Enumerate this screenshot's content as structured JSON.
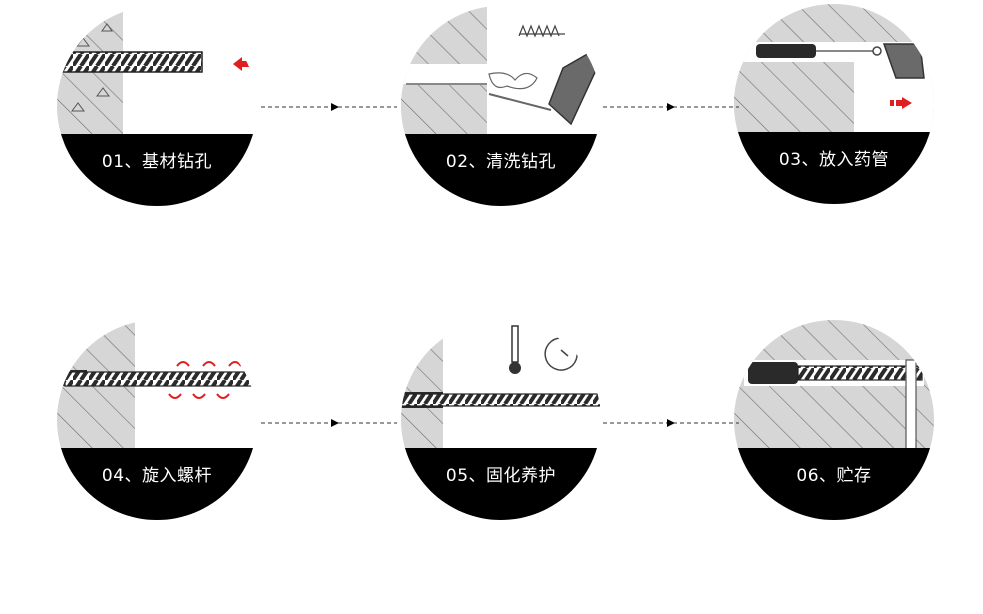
{
  "steps": [
    {
      "caption": "01、基材钻孔"
    },
    {
      "caption": "02、清洗钻孔"
    },
    {
      "caption": "03、放入药管"
    },
    {
      "caption": "04、旋入螺杆"
    },
    {
      "caption": "05、固化养护"
    },
    {
      "caption": "06、贮存"
    }
  ],
  "colors": {
    "band": "#000000",
    "arrow_accent": "#e02020",
    "wall": "#d9d9d9"
  }
}
